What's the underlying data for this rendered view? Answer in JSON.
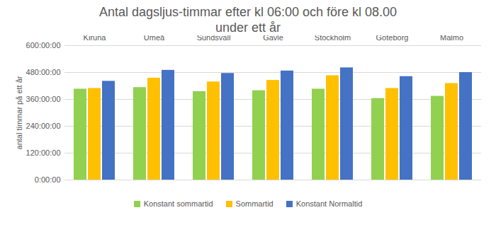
{
  "chart_data": {
    "type": "bar",
    "title": "Antal dagsljus-timmar efter kl 06:00 och före kl 08.00 under ett år",
    "y_label": "antal timmar på ett år",
    "categories": [
      "Kiruna",
      "Umeå",
      "Sundsvall",
      "Gävle",
      "Stockholm",
      "Göteborg",
      "Malmö"
    ],
    "series": [
      {
        "name": "Konstant sommartid",
        "color": "#92d050",
        "values": [
          406,
          413,
          395,
          399,
          406,
          364,
          374
        ]
      },
      {
        "name": "Sommartid",
        "color": "#ffc000",
        "values": [
          409,
          455,
          438,
          445,
          466,
          409,
          431
        ]
      },
      {
        "name": "Konstant Normaltid",
        "color": "#4472c4",
        "values": [
          441,
          490,
          476,
          487,
          501,
          462,
          480
        ]
      }
    ],
    "ylim": [
      0,
      600
    ],
    "yticks": [
      {
        "value": 0,
        "label": "0:00:00"
      },
      {
        "value": 120,
        "label": "120:00:00"
      },
      {
        "value": 240,
        "label": "240:00:00"
      },
      {
        "value": 360,
        "label": "360:00:00"
      },
      {
        "value": 480,
        "label": "480:00:00"
      },
      {
        "value": 600,
        "label": "600:00:00"
      }
    ],
    "grid": true,
    "legend": "bottom"
  }
}
